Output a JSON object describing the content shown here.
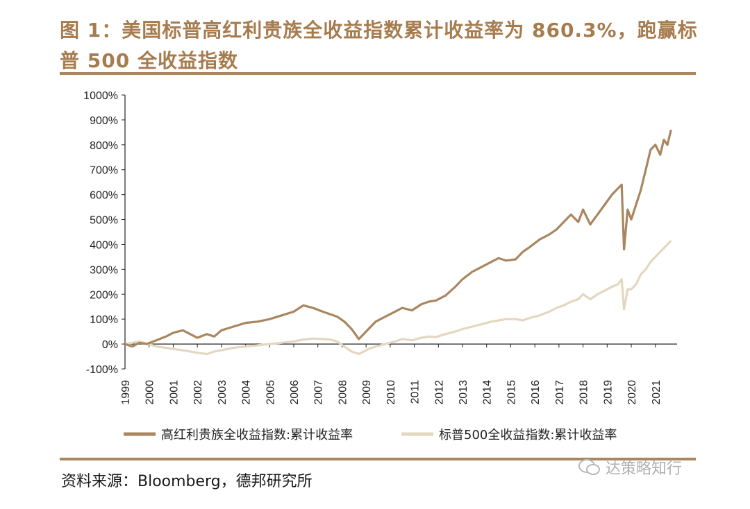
{
  "figure": {
    "title": "图 1：美国标普高红利贵族全收益指数累计收益率为 860.3%，跑赢标普 500 全收益指数",
    "source": "资料来源：Bloomberg，德邦研究所",
    "watermark": "达策略知行"
  },
  "chart_data": {
    "type": "line",
    "title": "",
    "xlabel": "",
    "ylabel": "",
    "ylim": [
      -100,
      1000
    ],
    "yticks": [
      "-100%",
      "0%",
      "100%",
      "200%",
      "300%",
      "400%",
      "500%",
      "600%",
      "700%",
      "800%",
      "900%",
      "1000%"
    ],
    "xlim": [
      1999,
      2021.9
    ],
    "xticks": [
      "1999",
      "2000",
      "2001",
      "2002",
      "2003",
      "2004",
      "2005",
      "2006",
      "2007",
      "2008",
      "2009",
      "2010",
      "2011",
      "2012",
      "2013",
      "2014",
      "2015",
      "2016",
      "2017",
      "2018",
      "2019",
      "2020",
      "2021"
    ],
    "legend_position": "bottom",
    "series": [
      {
        "name": "高红利贵族全收益指数:累计收益率",
        "color": "#a9865e",
        "x": [
          1999.0,
          1999.3,
          1999.6,
          1999.9,
          2000.3,
          2000.7,
          2001.0,
          2001.4,
          2001.7,
          2002.0,
          2002.4,
          2002.7,
          2003.0,
          2003.5,
          2004.0,
          2004.5,
          2005.0,
          2005.5,
          2006.0,
          2006.4,
          2006.8,
          2007.2,
          2007.5,
          2007.8,
          2008.1,
          2008.4,
          2008.7,
          2008.9,
          2009.1,
          2009.4,
          2009.8,
          2010.2,
          2010.5,
          2010.9,
          2011.3,
          2011.6,
          2011.9,
          2012.3,
          2012.7,
          2013.0,
          2013.4,
          2013.8,
          2014.2,
          2014.5,
          2014.8,
          2015.2,
          2015.5,
          2015.8,
          2016.2,
          2016.6,
          2016.9,
          2017.2,
          2017.5,
          2017.8,
          2018.0,
          2018.3,
          2018.6,
          2018.9,
          2019.2,
          2019.45,
          2019.6,
          2019.7,
          2019.85,
          2020.0,
          2020.2,
          2020.4,
          2020.6,
          2020.8,
          2021.0,
          2021.2,
          2021.35,
          2021.5,
          2021.65
        ],
        "values": [
          0,
          -10,
          5,
          0,
          15,
          30,
          45,
          55,
          40,
          25,
          40,
          30,
          55,
          70,
          85,
          90,
          100,
          115,
          130,
          155,
          145,
          130,
          120,
          110,
          90,
          60,
          20,
          40,
          60,
          90,
          110,
          130,
          145,
          135,
          160,
          170,
          175,
          195,
          230,
          260,
          290,
          310,
          330,
          345,
          335,
          340,
          370,
          390,
          420,
          440,
          460,
          490,
          520,
          490,
          540,
          480,
          520,
          560,
          600,
          625,
          640,
          380,
          540,
          500,
          560,
          620,
          700,
          780,
          800,
          760,
          820,
          800,
          860
        ]
      },
      {
        "name": "标普500全收益指数:累计收益率",
        "color": "#e3d7c0",
        "x": [
          1999.0,
          1999.3,
          1999.6,
          2000.0,
          2000.3,
          2000.7,
          2001.0,
          2001.4,
          2001.7,
          2002.0,
          2002.4,
          2002.7,
          2003.0,
          2003.5,
          2004.0,
          2004.5,
          2005.0,
          2005.5,
          2006.0,
          2006.4,
          2006.8,
          2007.2,
          2007.5,
          2007.8,
          2008.1,
          2008.4,
          2008.7,
          2008.9,
          2009.1,
          2009.4,
          2009.8,
          2010.2,
          2010.5,
          2010.9,
          2011.3,
          2011.6,
          2011.9,
          2012.3,
          2012.7,
          2013.0,
          2013.4,
          2013.8,
          2014.2,
          2014.5,
          2014.8,
          2015.2,
          2015.5,
          2015.8,
          2016.2,
          2016.6,
          2016.9,
          2017.2,
          2017.5,
          2017.8,
          2018.0,
          2018.3,
          2018.6,
          2018.9,
          2019.2,
          2019.45,
          2019.6,
          2019.7,
          2019.85,
          2020.0,
          2020.2,
          2020.4,
          2020.6,
          2020.8,
          2021.0,
          2021.2,
          2021.35,
          2021.5,
          2021.65
        ],
        "values": [
          0,
          5,
          10,
          0,
          -10,
          -15,
          -20,
          -25,
          -30,
          -35,
          -40,
          -30,
          -25,
          -15,
          -10,
          -5,
          0,
          5,
          10,
          18,
          22,
          20,
          18,
          10,
          -10,
          -30,
          -40,
          -30,
          -20,
          -10,
          0,
          10,
          20,
          15,
          25,
          30,
          28,
          40,
          50,
          60,
          70,
          80,
          90,
          95,
          100,
          100,
          95,
          105,
          115,
          130,
          145,
          155,
          170,
          180,
          200,
          180,
          200,
          215,
          230,
          240,
          260,
          140,
          220,
          220,
          240,
          280,
          300,
          330,
          350,
          370,
          385,
          400,
          415
        ]
      }
    ]
  }
}
